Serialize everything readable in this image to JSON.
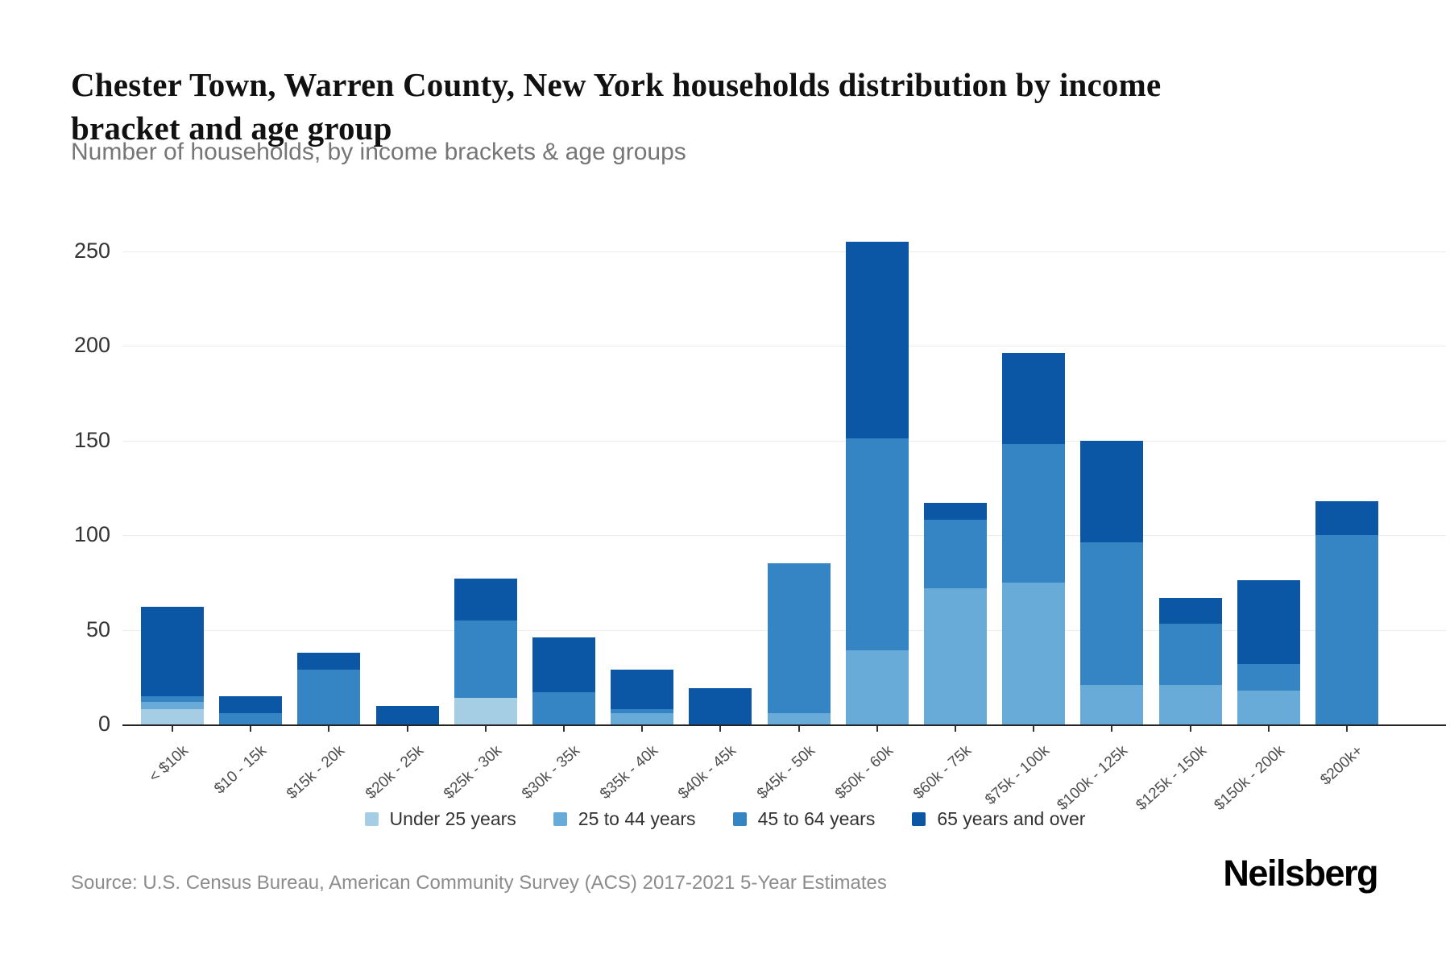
{
  "header": {
    "title": "Chester Town, Warren County, New York households distribution by income bracket and age group",
    "subtitle": "Number of households, by income brackets & age groups"
  },
  "footer": {
    "source": "Source: U.S. Census Bureau, American Community Survey (ACS) 2017-2021 5-Year Estimates",
    "logo": "Neilsberg"
  },
  "colors": {
    "under_25": "#a5cee4",
    "age_25_44": "#68abd8",
    "age_45_64": "#3584c4",
    "age_65_over": "#0b57a6",
    "gridline": "#ececec",
    "axis": "#252525"
  },
  "chart_data": {
    "type": "bar",
    "stacked": true,
    "title": "Chester Town, Warren County, New York households distribution by income bracket and age group",
    "xlabel": "",
    "ylabel": "Number of households",
    "ylim": [
      0,
      250
    ],
    "yticks": [
      0,
      50,
      100,
      150,
      200,
      250
    ],
    "grid": true,
    "legend_position": "bottom",
    "categories": [
      "< $10k",
      "$10 - 15k",
      "$15k - 20k",
      "$20k - 25k",
      "$25k - 30k",
      "$30k - 35k",
      "$35k - 40k",
      "$40k - 45k",
      "$45k - 50k",
      "$50k - 60k",
      "$60k - 75k",
      "$75k - 100k",
      "$100k - 125k",
      "$125k - 150k",
      "$150k - 200k",
      "$200k+"
    ],
    "series": [
      {
        "name": "Under 25 years",
        "color": "#a5cee4",
        "values": [
          8,
          0,
          0,
          0,
          14,
          0,
          0,
          0,
          0,
          0,
          0,
          0,
          0,
          0,
          0,
          0
        ]
      },
      {
        "name": "25 to 44 years",
        "color": "#68abd8",
        "values": [
          4,
          0,
          0,
          0,
          0,
          0,
          6,
          0,
          6,
          39,
          72,
          75,
          21,
          21,
          18,
          0
        ]
      },
      {
        "name": "45 to 64 years",
        "color": "#3584c4",
        "values": [
          3,
          6,
          29,
          0,
          41,
          17,
          2,
          0,
          79,
          112,
          36,
          73,
          75,
          32,
          14,
          100
        ]
      },
      {
        "name": "65 years and over",
        "color": "#0b57a6",
        "values": [
          47,
          9,
          9,
          10,
          22,
          29,
          21,
          19,
          0,
          104,
          9,
          48,
          54,
          14,
          44,
          18
        ]
      }
    ],
    "totals": [
      62,
      15,
      38,
      10,
      77,
      46,
      29,
      19,
      85,
      255,
      117,
      196,
      150,
      67,
      76,
      118
    ]
  }
}
